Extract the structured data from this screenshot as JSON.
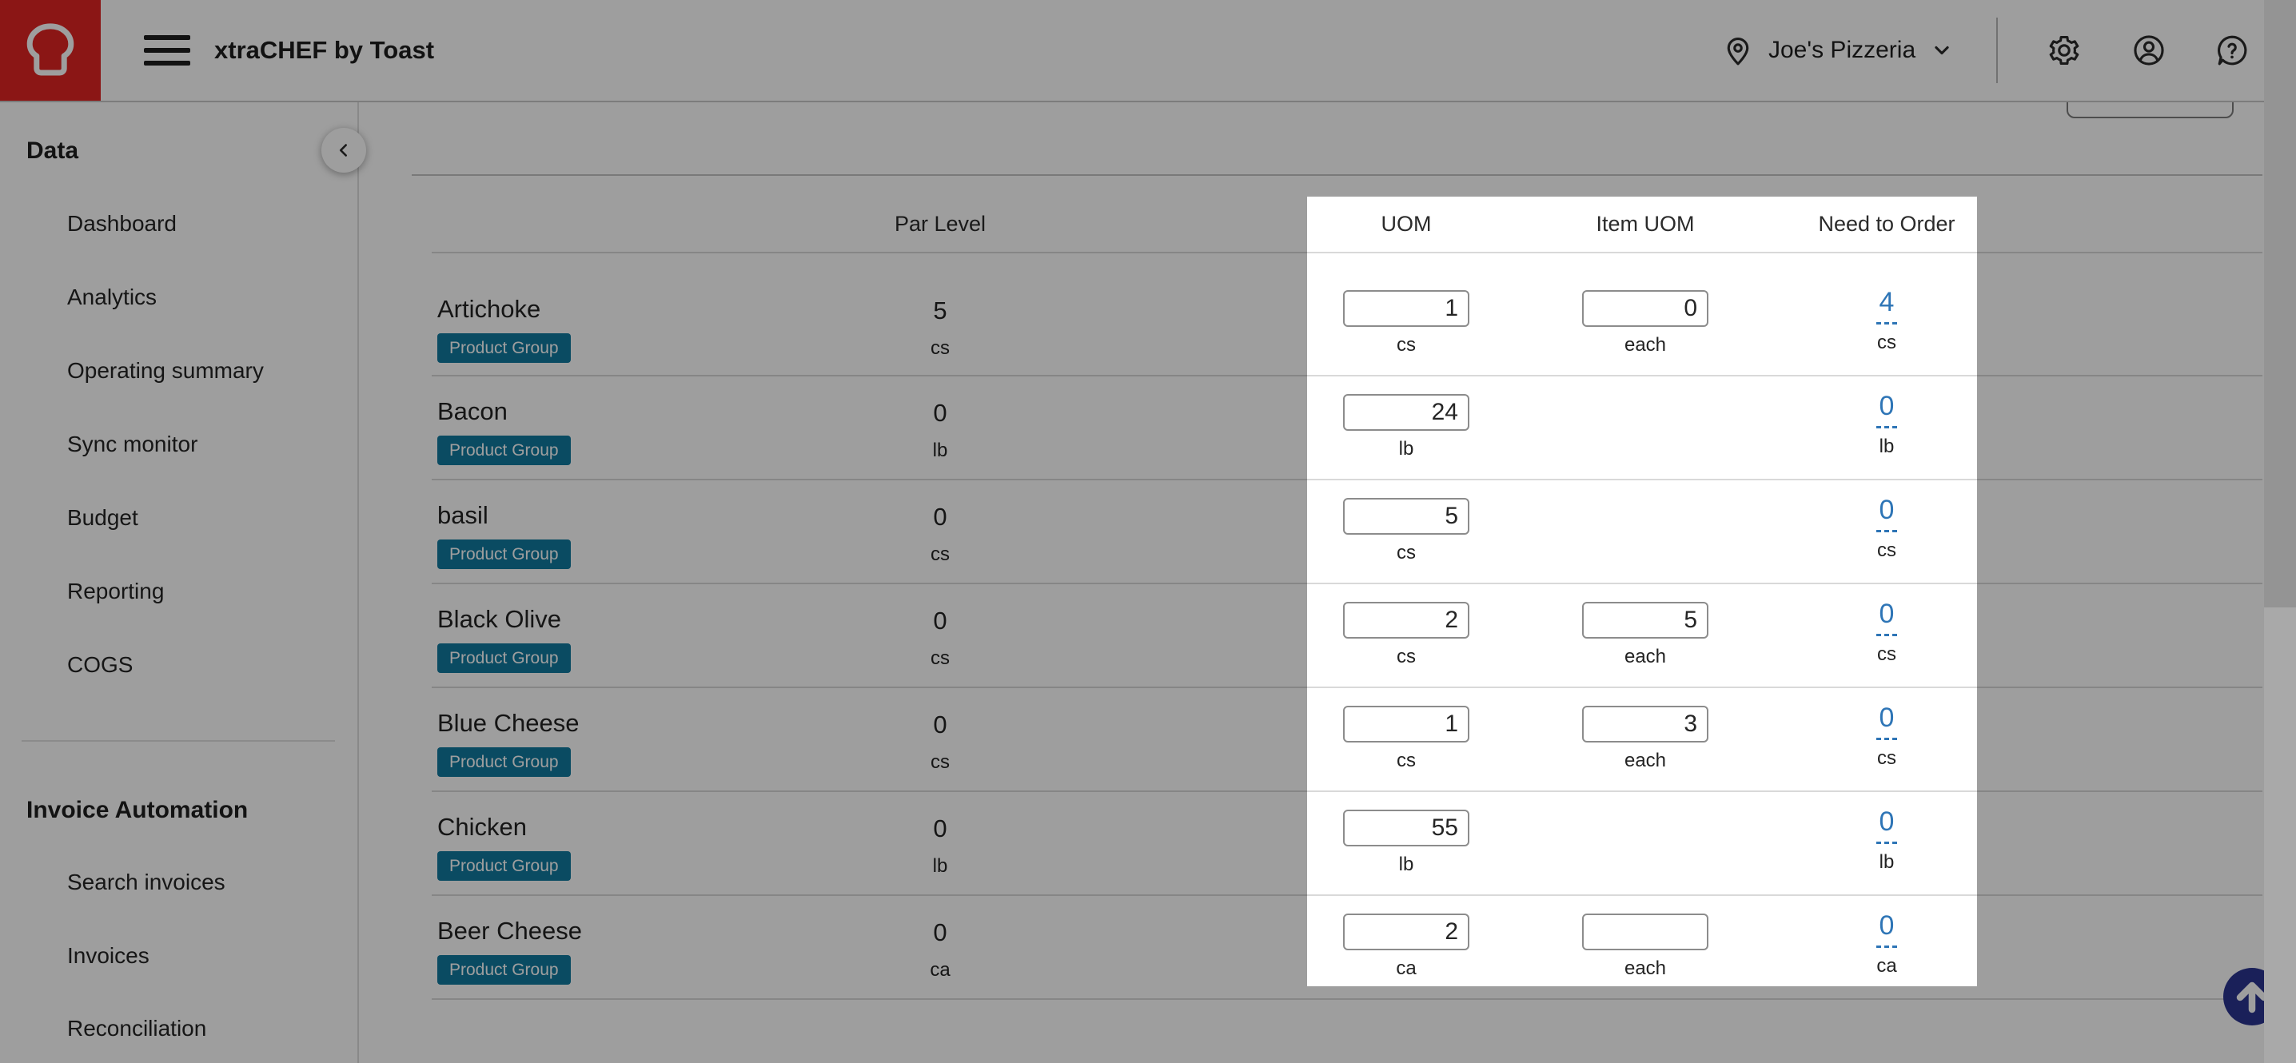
{
  "header": {
    "title": "xtraCHEF by Toast",
    "location": "Joe's Pizzeria"
  },
  "sidebar": {
    "sections": [
      {
        "label": "Data",
        "items": [
          "Dashboard",
          "Analytics",
          "Operating summary",
          "Sync monitor",
          "Budget",
          "Reporting",
          "COGS"
        ]
      },
      {
        "label": "Invoice Automation",
        "items": [
          "Search invoices",
          "Invoices",
          "Reconciliation"
        ]
      }
    ]
  },
  "table": {
    "columns": {
      "par": "Par Level",
      "uom": "UOM",
      "item_uom": "Item UOM",
      "need": "Need to Order"
    },
    "badge_label": "Product Group",
    "rows": [
      {
        "name": "Artichoke",
        "par": "5",
        "par_unit": "cs",
        "uom_value": "1",
        "uom_unit": "cs",
        "has_item": true,
        "item_value": "0",
        "item_unit": "each",
        "need": "4",
        "need_unit": "cs"
      },
      {
        "name": "Bacon",
        "par": "0",
        "par_unit": "lb",
        "uom_value": "24",
        "uom_unit": "lb",
        "has_item": false,
        "item_value": "",
        "item_unit": "",
        "need": "0",
        "need_unit": "lb"
      },
      {
        "name": "basil",
        "par": "0",
        "par_unit": "cs",
        "uom_value": "5",
        "uom_unit": "cs",
        "has_item": false,
        "item_value": "",
        "item_unit": "",
        "need": "0",
        "need_unit": "cs"
      },
      {
        "name": "Black Olive",
        "par": "0",
        "par_unit": "cs",
        "uom_value": "2",
        "uom_unit": "cs",
        "has_item": true,
        "item_value": "5",
        "item_unit": "each",
        "need": "0",
        "need_unit": "cs"
      },
      {
        "name": "Blue Cheese",
        "par": "0",
        "par_unit": "cs",
        "uom_value": "1",
        "uom_unit": "cs",
        "has_item": true,
        "item_value": "3",
        "item_unit": "each",
        "need": "0",
        "need_unit": "cs"
      },
      {
        "name": "Chicken",
        "par": "0",
        "par_unit": "lb",
        "uom_value": "55",
        "uom_unit": "lb",
        "has_item": false,
        "item_value": "",
        "item_unit": "",
        "need": "0",
        "need_unit": "lb"
      },
      {
        "name": "Beer Cheese",
        "par": "0",
        "par_unit": "ca",
        "uom_value": "2",
        "uom_unit": "ca",
        "has_item": true,
        "item_value": "",
        "item_unit": "each",
        "need": "0",
        "need_unit": "ca"
      }
    ]
  },
  "icons": {
    "menu": "hamburger-menu-icon",
    "location": "location-pin-icon",
    "location_dropdown": "chevron-down-icon",
    "settings": "gear-icon",
    "account": "account-icon",
    "help": "help-icon",
    "sidebar_collapse": "chevron-left-icon",
    "scroll_top": "arrow-up-icon",
    "logo": "toast-bread-logo"
  },
  "colors": {
    "brand_red": "#e02423",
    "badge_teal": "#11799f",
    "link_blue": "#2e75b6",
    "scroll_top_navy": "#2b3490",
    "dim_overlay": "rgba(0,0,0,0.38)"
  }
}
